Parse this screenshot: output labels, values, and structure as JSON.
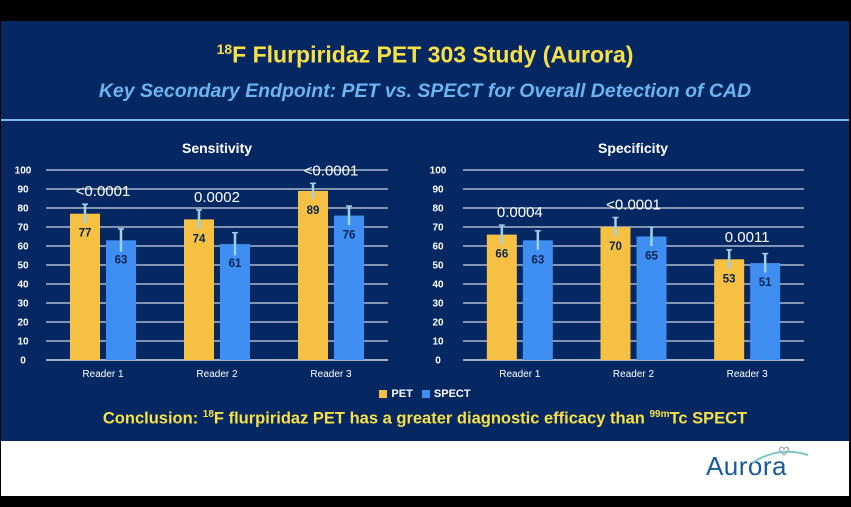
{
  "title": {
    "sup": "18",
    "main": "F Flurpiridaz PET 303 Study (Aurora)"
  },
  "subtitle": "Key Secondary Endpoint: PET vs. SPECT for Overall Detection of CAD",
  "legend": {
    "pet": "PET",
    "spect": "SPECT"
  },
  "conclusion": {
    "pre": "Conclusion: ",
    "sup1": "18",
    "mid": "F flurpiridaz PET has a greater diagnostic efficacy than ",
    "sup2": "99m",
    "post": "Tc SPECT"
  },
  "logo_text": "Aurora",
  "colors": {
    "background": "#052863",
    "pet": "#f6c042",
    "spect": "#3f8ef1",
    "title": "#f8e046",
    "subtitle": "#6cb4ef"
  },
  "chart_data": [
    {
      "type": "bar",
      "title": "Sensitivity",
      "categories": [
        "Reader 1",
        "Reader 2",
        "Reader 3"
      ],
      "series": [
        {
          "name": "PET",
          "values": [
            77,
            74,
            89
          ],
          "error": [
            5,
            5,
            4
          ]
        },
        {
          "name": "SPECT",
          "values": [
            63,
            61,
            76
          ],
          "error": [
            6,
            6,
            5
          ]
        }
      ],
      "annotations": [
        "<0.0001",
        "0.0002",
        "<0.0001"
      ],
      "ylim": [
        0,
        100
      ],
      "yticks": [
        0,
        10,
        20,
        30,
        40,
        50,
        60,
        70,
        80,
        90,
        100
      ],
      "grid": true
    },
    {
      "type": "bar",
      "title": "Specificity",
      "categories": [
        "Reader 1",
        "Reader 2",
        "Reader 3"
      ],
      "series": [
        {
          "name": "PET",
          "values": [
            66,
            70,
            53
          ],
          "error": [
            5,
            5,
            5
          ]
        },
        {
          "name": "SPECT",
          "values": [
            63,
            65,
            51
          ],
          "error": [
            5,
            5,
            5
          ]
        }
      ],
      "annotations": [
        "0.0004",
        "<0.0001",
        "0.0011"
      ],
      "ylim": [
        0,
        100
      ],
      "yticks": [
        0,
        10,
        20,
        30,
        40,
        50,
        60,
        70,
        80,
        90,
        100
      ],
      "grid": true
    }
  ]
}
